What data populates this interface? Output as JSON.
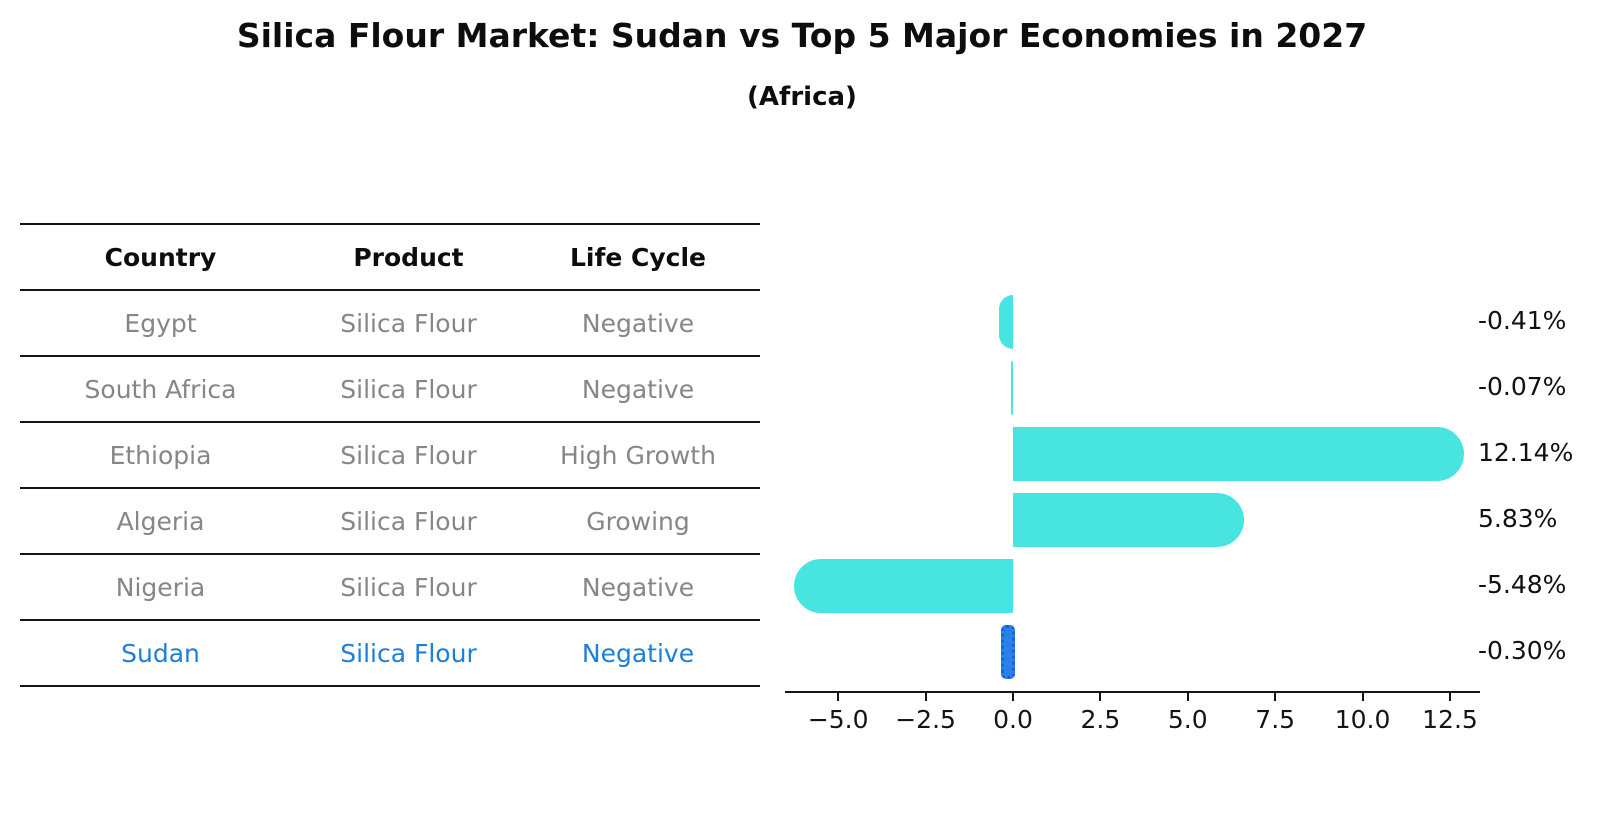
{
  "title": "Silica Flour Market: Sudan vs Top 5 Major Economies in 2027",
  "subtitle": "(Africa)",
  "table": {
    "headers": [
      "Country",
      "Product",
      "Life Cycle"
    ],
    "rows": [
      {
        "country": "Egypt",
        "product": "Silica Flour",
        "life_cycle": "Negative",
        "highlight": false
      },
      {
        "country": "South Africa",
        "product": "Silica Flour",
        "life_cycle": "Negative",
        "highlight": false
      },
      {
        "country": "Ethiopia",
        "product": "Silica Flour",
        "life_cycle": "High Growth",
        "highlight": false
      },
      {
        "country": "Algeria",
        "product": "Silica Flour",
        "life_cycle": "Growing",
        "highlight": false
      },
      {
        "country": "Nigeria",
        "product": "Silica Flour",
        "life_cycle": "Negative",
        "highlight": false
      },
      {
        "country": "Sudan",
        "product": "Silica Flour",
        "life_cycle": "Negative",
        "highlight": true
      }
    ]
  },
  "chart_data": {
    "type": "bar",
    "orientation": "horizontal",
    "title": "Silica Flour Market: Sudan vs Top 5 Major Economies in 2027 (Africa)",
    "categories": [
      "Egypt",
      "South Africa",
      "Ethiopia",
      "Algeria",
      "Nigeria",
      "Sudan"
    ],
    "values": [
      -0.41,
      -0.07,
      12.14,
      5.83,
      -5.48,
      -0.3
    ],
    "value_labels": [
      "-0.41%",
      "-0.07%",
      "12.14%",
      "5.83%",
      "-5.48%",
      "-0.30%"
    ],
    "unit": "%",
    "xlabel": "",
    "ylabel": "",
    "xlim": [
      -6.5,
      13.4
    ],
    "xticks": [
      -5.0,
      -2.5,
      0.0,
      2.5,
      5.0,
      7.5,
      10.0,
      12.5
    ],
    "xtick_labels": [
      "−5.0",
      "−2.5",
      "0.0",
      "2.5",
      "5.0",
      "7.5",
      "10.0",
      "12.5"
    ],
    "grid": false,
    "legend": null,
    "colors": {
      "bar_fill": "#48E5E0",
      "highlight_bar_fill": "#2B7FE8",
      "highlight_bar_edge": "#1565D8",
      "highlight_text": "#1E7FD6",
      "table_text": "#868686",
      "axis_text": "#141414"
    }
  }
}
